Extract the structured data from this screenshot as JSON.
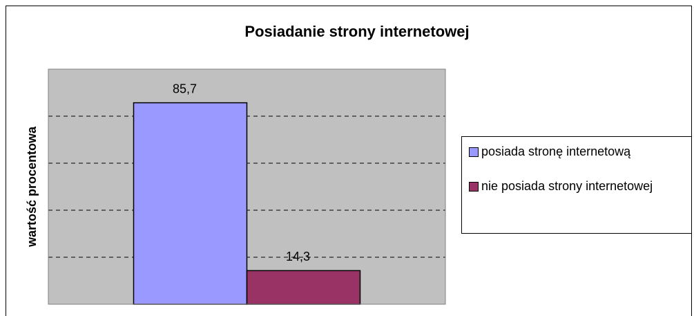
{
  "chart_data": {
    "type": "bar",
    "title": "Posiadanie strony internetowej",
    "y_label": "wartość procentowa",
    "categories": [
      null
    ],
    "series": [
      {
        "name": "posiada stronę internetową",
        "color": "#9999ff",
        "values": [
          85.7
        ],
        "value_labels": [
          "85,7"
        ]
      },
      {
        "name": "nie posiada strony internetowej",
        "color": "#993366",
        "values": [
          14.3
        ],
        "value_labels": [
          "14,3"
        ]
      }
    ],
    "ylim": [
      0,
      100
    ],
    "yticks": [
      0,
      20,
      40,
      60,
      80,
      100
    ],
    "grid": true,
    "legend": "right"
  }
}
